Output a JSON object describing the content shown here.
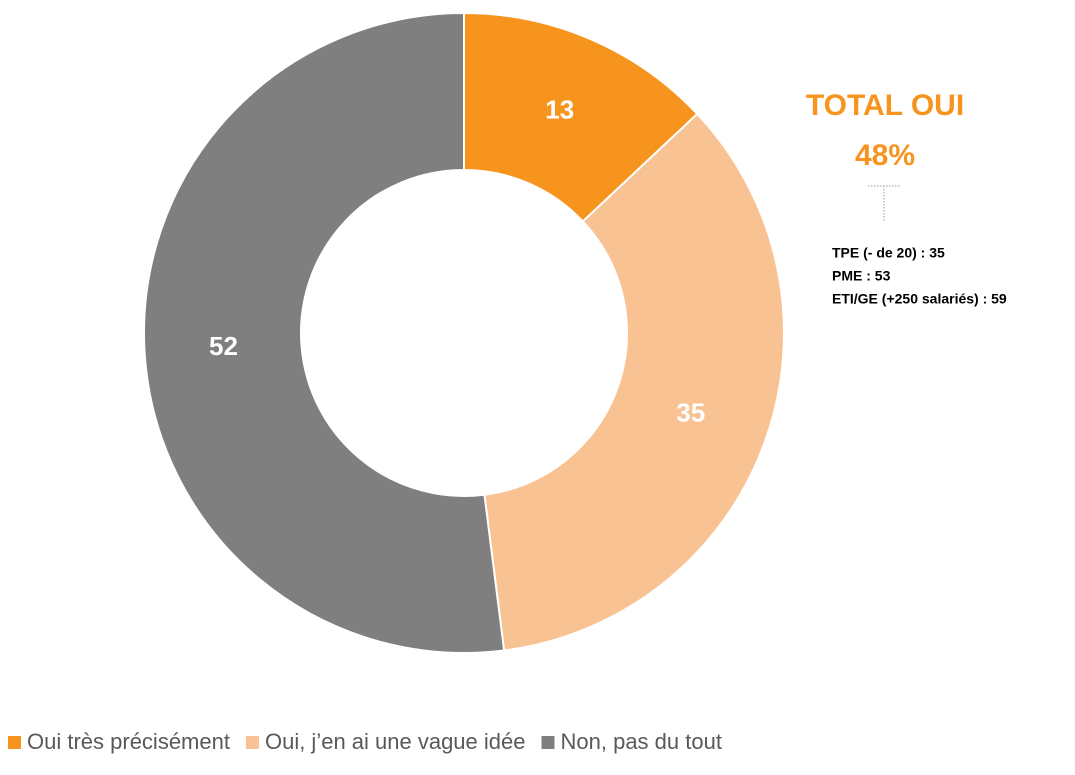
{
  "chart_data": {
    "type": "donut",
    "categories": [
      "Oui très précisément",
      "Oui, j’en ai une vague idée",
      "Non, pas du tout"
    ],
    "values": [
      13,
      35,
      52
    ],
    "colors": [
      "#f7941d",
      "#f9c292",
      "#7f7f7f"
    ],
    "annotations": {
      "title": "TOTAL OUI",
      "total": "48%",
      "notes": [
        "TPE (- de 20) : 35",
        "PME : 53",
        "ETI/GE (+250 salariés) : 59"
      ]
    },
    "legend": "bottom"
  }
}
